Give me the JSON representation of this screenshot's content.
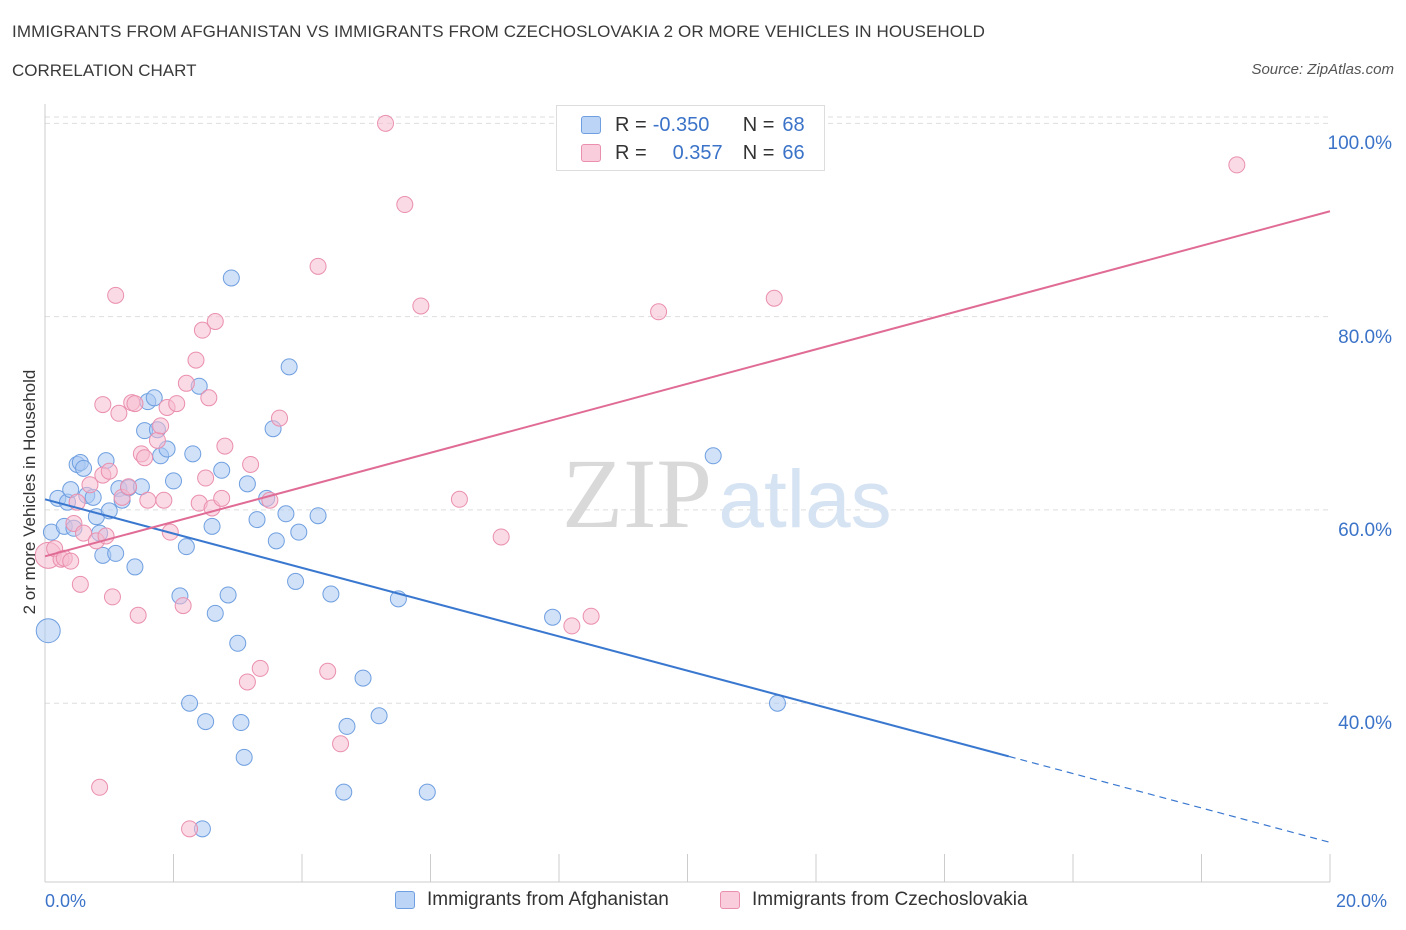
{
  "header": {
    "title": "IMMIGRANTS FROM AFGHANISTAN VS IMMIGRANTS FROM CZECHOSLOVAKIA 2 OR MORE VEHICLES IN HOUSEHOLD",
    "subtitle": "CORRELATION CHART",
    "source": "Source: ZipAtlas.com"
  },
  "watermark": {
    "zip": "ZIP",
    "atlas": "atlas"
  },
  "legend": {
    "rows": [
      {
        "r_label": "R =",
        "r_value": "-0.350",
        "n_label": "N =",
        "n_value": "68"
      },
      {
        "r_label": "R =",
        "r_value": "0.357",
        "n_label": "N =",
        "n_value": "66"
      }
    ]
  },
  "colors": {
    "blue_fill": "#aac8f2",
    "blue_stroke": "#6f9fe0",
    "blue_line": "#3a78d0",
    "pink_fill": "#f6bcd0",
    "pink_stroke": "#ea8fae",
    "pink_line": "#e06c96",
    "grid": "#dedede",
    "axis_text": "#3b73c8"
  },
  "chart_data": {
    "type": "scatter",
    "xlabel": "",
    "ylabel": "2 or more Vehicles in Household",
    "xlim": [
      0,
      20
    ],
    "ylim": [
      21.5,
      102
    ],
    "x_tick_labels": [
      "0.0%",
      "20.0%"
    ],
    "y_ticks": [
      {
        "value": 40,
        "label": "40.0%"
      },
      {
        "value": 60,
        "label": "60.0%"
      },
      {
        "value": 80,
        "label": "80.0%"
      },
      {
        "value": 100,
        "label": "100.0%"
      }
    ],
    "grid": "horizontal dashed",
    "series": [
      {
        "name": "Immigrants from Afghanistan",
        "color": "#aac8f2",
        "trend": {
          "x": [
            0,
            15
          ],
          "y": [
            61.1,
            34.5
          ],
          "dashed_to": [
            20,
            25.6
          ]
        },
        "points": [
          [
            0.05,
            47.5
          ],
          [
            0.1,
            57.7
          ],
          [
            0.2,
            61.2
          ],
          [
            0.3,
            58.3
          ],
          [
            0.35,
            60.8
          ],
          [
            0.4,
            62.1
          ],
          [
            0.45,
            58.1
          ],
          [
            0.5,
            64.7
          ],
          [
            0.55,
            64.9
          ],
          [
            0.6,
            64.3
          ],
          [
            0.65,
            61.5
          ],
          [
            0.75,
            61.3
          ],
          [
            0.8,
            59.3
          ],
          [
            0.85,
            57.6
          ],
          [
            0.9,
            55.3
          ],
          [
            0.95,
            65.1
          ],
          [
            1.0,
            59.9
          ],
          [
            1.1,
            55.5
          ],
          [
            1.15,
            62.2
          ],
          [
            1.2,
            61.0
          ],
          [
            1.3,
            62.3
          ],
          [
            1.4,
            54.1
          ],
          [
            1.5,
            62.4
          ],
          [
            1.55,
            68.2
          ],
          [
            1.6,
            71.2
          ],
          [
            1.7,
            71.6
          ],
          [
            1.75,
            68.3
          ],
          [
            1.8,
            65.6
          ],
          [
            1.9,
            66.3
          ],
          [
            2.0,
            63.0
          ],
          [
            2.1,
            51.1
          ],
          [
            2.2,
            56.2
          ],
          [
            2.25,
            40.0
          ],
          [
            2.3,
            65.8
          ],
          [
            2.4,
            72.8
          ],
          [
            2.45,
            27.0
          ],
          [
            2.5,
            38.1
          ],
          [
            2.6,
            58.3
          ],
          [
            2.65,
            49.3
          ],
          [
            2.75,
            64.1
          ],
          [
            2.85,
            51.2
          ],
          [
            2.9,
            84.0
          ],
          [
            3.0,
            46.2
          ],
          [
            3.05,
            38.0
          ],
          [
            3.1,
            34.4
          ],
          [
            3.15,
            62.7
          ],
          [
            3.3,
            59.0
          ],
          [
            3.45,
            61.2
          ],
          [
            3.55,
            68.4
          ],
          [
            3.6,
            56.8
          ],
          [
            3.75,
            59.6
          ],
          [
            3.8,
            74.8
          ],
          [
            3.9,
            52.6
          ],
          [
            3.95,
            57.7
          ],
          [
            4.25,
            59.4
          ],
          [
            4.45,
            51.3
          ],
          [
            4.65,
            30.8
          ],
          [
            4.7,
            37.6
          ],
          [
            4.95,
            42.6
          ],
          [
            5.2,
            38.7
          ],
          [
            5.5,
            50.8
          ],
          [
            5.95,
            30.8
          ],
          [
            7.9,
            48.9
          ],
          [
            10.4,
            65.6
          ],
          [
            11.4,
            40.0
          ]
        ]
      },
      {
        "name": "Immigrants from Czechoslovakia",
        "color": "#f6bcd0",
        "trend": {
          "x": [
            0,
            20
          ],
          "y": [
            55.2,
            90.9
          ]
        },
        "points": [
          [
            0.05,
            55.3
          ],
          [
            0.15,
            56.0
          ],
          [
            0.25,
            54.9
          ],
          [
            0.3,
            55.0
          ],
          [
            0.4,
            54.7
          ],
          [
            0.45,
            58.6
          ],
          [
            0.5,
            60.8
          ],
          [
            0.55,
            52.3
          ],
          [
            0.6,
            57.6
          ],
          [
            0.7,
            62.6
          ],
          [
            0.8,
            56.8
          ],
          [
            0.85,
            31.3
          ],
          [
            0.9,
            63.6
          ],
          [
            0.9,
            70.9
          ],
          [
            0.95,
            57.3
          ],
          [
            1.0,
            64.0
          ],
          [
            1.05,
            51.0
          ],
          [
            1.1,
            82.2
          ],
          [
            1.15,
            70.0
          ],
          [
            1.2,
            61.3
          ],
          [
            1.3,
            62.4
          ],
          [
            1.35,
            71.1
          ],
          [
            1.4,
            71.0
          ],
          [
            1.45,
            49.1
          ],
          [
            1.5,
            65.8
          ],
          [
            1.55,
            65.4
          ],
          [
            1.6,
            61.0
          ],
          [
            1.75,
            67.2
          ],
          [
            1.8,
            68.7
          ],
          [
            1.85,
            61.0
          ],
          [
            1.9,
            70.6
          ],
          [
            1.95,
            57.7
          ],
          [
            2.05,
            71.0
          ],
          [
            2.15,
            50.1
          ],
          [
            2.2,
            73.1
          ],
          [
            2.25,
            27.0
          ],
          [
            2.35,
            75.5
          ],
          [
            2.4,
            60.7
          ],
          [
            2.45,
            78.6
          ],
          [
            2.5,
            63.3
          ],
          [
            2.55,
            71.6
          ],
          [
            2.6,
            60.2
          ],
          [
            2.65,
            79.5
          ],
          [
            2.75,
            61.2
          ],
          [
            2.8,
            66.6
          ],
          [
            3.15,
            42.2
          ],
          [
            3.2,
            64.7
          ],
          [
            3.35,
            43.6
          ],
          [
            3.5,
            61.0
          ],
          [
            3.65,
            69.5
          ],
          [
            4.25,
            85.2
          ],
          [
            4.4,
            43.3
          ],
          [
            4.6,
            35.8
          ],
          [
            5.3,
            100.0
          ],
          [
            5.6,
            91.6
          ],
          [
            5.85,
            81.1
          ],
          [
            6.45,
            61.1
          ],
          [
            7.1,
            57.2
          ],
          [
            8.2,
            48.0
          ],
          [
            8.5,
            49.0
          ],
          [
            9.55,
            80.5
          ],
          [
            11.35,
            81.9
          ],
          [
            18.55,
            95.7
          ]
        ]
      }
    ]
  }
}
